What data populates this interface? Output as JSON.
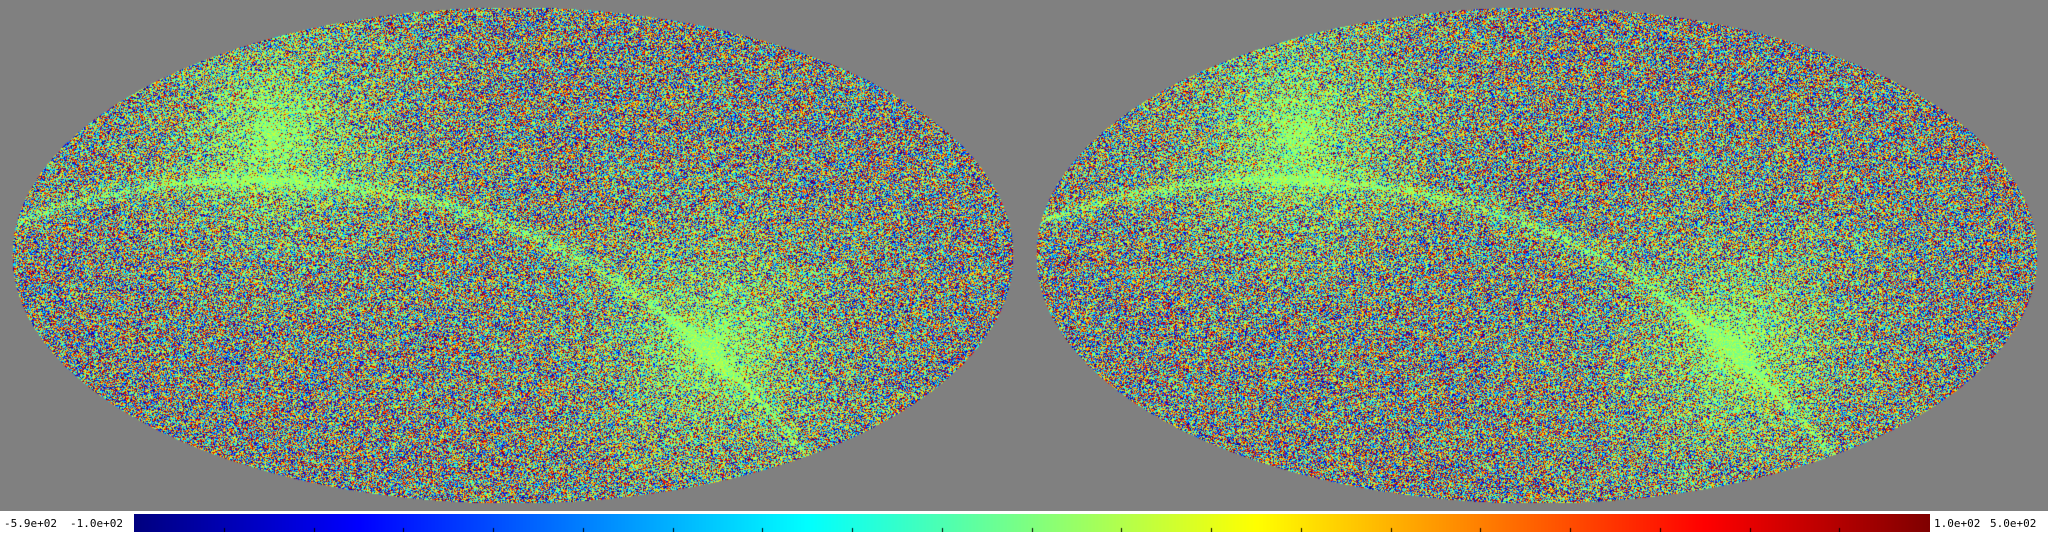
{
  "colorbar": {
    "min_label": "-5.9e+02",
    "low_label": "-1.0e+02",
    "high_label": "1.0e+02",
    "max_label": "5.0e+02",
    "colormap": "jet",
    "ticks": 21
  },
  "maps": [
    {
      "projection": "mollweide",
      "name": "left-sky-map"
    },
    {
      "projection": "mollweide",
      "name": "right-sky-map"
    }
  ],
  "colors": {
    "background": "#808080",
    "colorbar_background": "#ffffff"
  }
}
